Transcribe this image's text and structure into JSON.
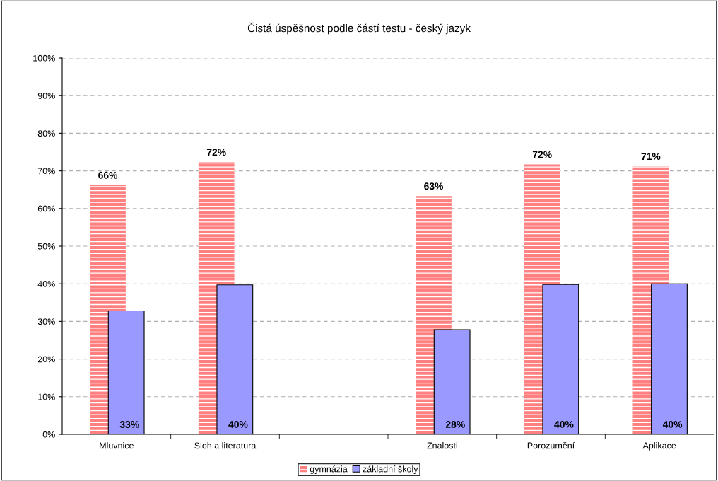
{
  "chart_data": {
    "type": "bar",
    "title": "Čistá úspěšnost podle částí testu - český jazyk",
    "categories": [
      "Mluvnice",
      "Sloh a literatura",
      null,
      "Znalosti",
      "Porozumění",
      "Aplikace"
    ],
    "series": [
      {
        "name": "gymnázia",
        "color": "#ff8080",
        "values": [
          66.2,
          72.3,
          null,
          63.3,
          71.7,
          71.2
        ],
        "value_labels": [
          "66%",
          "72%",
          null,
          "63%",
          "72%",
          "71%"
        ]
      },
      {
        "name": "základní školy",
        "color": "#9999ff",
        "values": [
          32.8,
          39.7,
          null,
          27.8,
          39.8,
          40.0
        ],
        "value_labels": [
          "33%",
          "40%",
          null,
          "28%",
          "40%",
          "40%"
        ]
      }
    ],
    "ylim": [
      0,
      100
    ],
    "yticks": [
      {
        "value": 0,
        "label": "0%"
      },
      {
        "value": 10,
        "label": "10%"
      },
      {
        "value": 20,
        "label": "20%"
      },
      {
        "value": 30,
        "label": "30%"
      },
      {
        "value": 40,
        "label": "40%"
      },
      {
        "value": 50,
        "label": "50%"
      },
      {
        "value": 60,
        "label": "60%"
      },
      {
        "value": 70,
        "label": "70%"
      },
      {
        "value": 80,
        "label": "80%"
      },
      {
        "value": 90,
        "label": "90%"
      },
      {
        "value": 100,
        "label": "100%"
      }
    ],
    "grid": "y",
    "legend": "bottom"
  }
}
